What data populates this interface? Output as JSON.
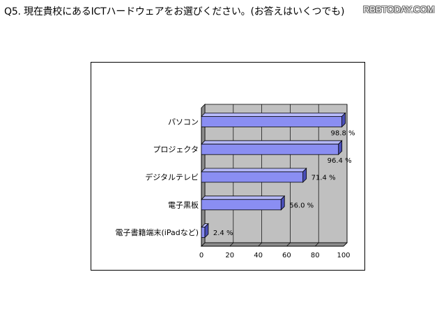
{
  "question": "Q5. 現在貴校にあるICTハードウェアをお選びください。(お答えはいくつでも)",
  "watermark": "RBBTODAY.COM",
  "chart_data": {
    "type": "bar",
    "orientation": "horizontal",
    "style": "3d",
    "categories": [
      "パソコン",
      "プロジェクタ",
      "デジタルテレビ",
      "電子黒板",
      "電子書籍端末(iPadなど)"
    ],
    "values": [
      98.8,
      96.4,
      71.4,
      56.0,
      2.4
    ],
    "value_labels": [
      "98.8 %",
      "96.4 %",
      "71.4 %",
      "56.0 %",
      "2.4 %"
    ],
    "xlim": [
      0,
      100
    ],
    "xticks": [
      "0",
      "20",
      "40",
      "60",
      "80",
      "100"
    ],
    "grid": true,
    "legend": "none",
    "colors": {
      "bar_front": "#8a8ef2",
      "bar_top": "#b6b9fa",
      "bar_side": "#4a4fb8",
      "plot_back": "#c0c0c0",
      "plot_floor": "#8c8c8c"
    }
  }
}
